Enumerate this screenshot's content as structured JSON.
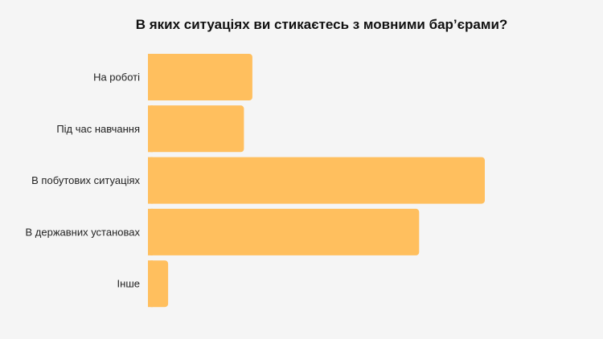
{
  "chart_data": {
    "type": "bar",
    "orientation": "horizontal",
    "title": "В яких ситуаціях ви стикаєтесь з мовними бар’єрами?",
    "categories": [
      "На роботі",
      "Під час навчання",
      "В побутових ситуаціях",
      "В державних установах",
      "Інше"
    ],
    "values": [
      31,
      28.5,
      100,
      80.5,
      6
    ],
    "xlim": [
      0,
      100
    ],
    "grid": false,
    "legend": "none",
    "bar_color": "#ffbf5e"
  }
}
